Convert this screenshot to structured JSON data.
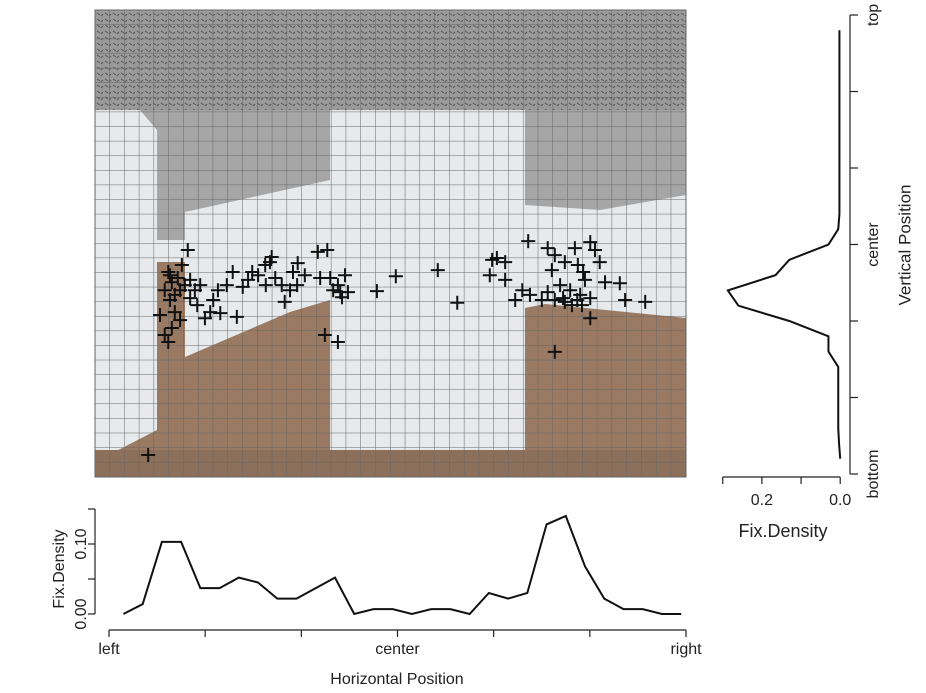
{
  "chart_data": [
    {
      "type": "scatter",
      "color": "#111111",
      "xlim": [
        0,
        100
      ],
      "ylim": [
        0,
        100
      ],
      "x": [
        9.0,
        12.4,
        11.8,
        11.0,
        13.5,
        13.0,
        14.4,
        12.7,
        16.1,
        17.3,
        18.6,
        19.5,
        21.2,
        24.0,
        20.0,
        20.8,
        22.3,
        23.3,
        25.0,
        25.9,
        26.6,
        27.6,
        28.8,
        29.6,
        29.9,
        28.9,
        30.5,
        31.6,
        32.1,
        33.0,
        33.5,
        34.2,
        34.3,
        35.5,
        38.1,
        37.7,
        39.3,
        39.8,
        40.3,
        41.1,
        41.8,
        42.3,
        42.8,
        41.5,
        38.9,
        41.1,
        47.7,
        50.9,
        58.0,
        61.3,
        12.4,
        13.0,
        11.8,
        14.0,
        15.2,
        15.7,
        14.7,
        13.5,
        12.7,
        14.4,
        16.1,
        16.9,
        17.8,
        73.3,
        76.6,
        77.8,
        77.3,
        78.7,
        79.5,
        81.2,
        81.7,
        82.6,
        82.9,
        83.8,
        84.6,
        85.4,
        86.3,
        83.8,
        82.4,
        83.8,
        81.6,
        80.4,
        79.2,
        77.8,
        76.6,
        75.6,
        73.6,
        72.3,
        71.1,
        69.4,
        67.2,
        66.8,
        68.0,
        69.4,
        77.8,
        88.8,
        89.7,
        93.1,
        80.7,
        79.5,
        82.1
      ],
      "y": [
        4.7,
        28.9,
        30.4,
        34.7,
        35.3,
        31.9,
        33.6,
        37.9,
        38.3,
        36.8,
        34.0,
        35.3,
        35.1,
        34.3,
        37.9,
        40.0,
        41.1,
        43.9,
        40.7,
        42.2,
        43.9,
        43.2,
        45.4,
        46.0,
        47.1,
        41.1,
        42.6,
        41.1,
        37.5,
        40.0,
        43.9,
        41.1,
        45.8,
        43.2,
        42.6,
        48.2,
        48.6,
        42.6,
        40.0,
        41.1,
        38.5,
        43.2,
        39.6,
        39.6,
        30.4,
        28.9,
        39.8,
        43.0,
        44.3,
        37.3,
        43.9,
        41.7,
        40.0,
        42.6,
        41.1,
        48.6,
        45.4,
        39.0,
        43.2,
        40.0,
        42.2,
        40.0,
        41.1,
        50.5,
        49.0,
        47.5,
        44.3,
        41.1,
        46.0,
        49.0,
        45.4,
        43.9,
        42.2,
        50.3,
        48.6,
        46.0,
        41.7,
        38.3,
        36.8,
        34.0,
        37.9,
        40.0,
        38.3,
        37.9,
        39.6,
        37.9,
        39.0,
        40.0,
        37.9,
        42.2,
        46.5,
        43.2,
        46.9,
        46.0,
        26.8,
        41.5,
        37.9,
        37.5,
        36.8,
        37.5,
        39.0
      ]
    },
    {
      "type": "line",
      "xlabel": "Horizontal Position",
      "ylabel": "Fix.Density",
      "color": "#111111",
      "xlim": [
        0,
        60
      ],
      "ylim": [
        -0.01,
        0.15
      ],
      "xticks": [
        {
          "value": 0,
          "label": "left"
        },
        {
          "value": 10,
          "label": null
        },
        {
          "value": 20,
          "label": null
        },
        {
          "value": 30,
          "label": "center"
        },
        {
          "value": 40,
          "label": null
        },
        {
          "value": 50,
          "label": null
        },
        {
          "value": 60,
          "label": "right"
        }
      ],
      "yticks": [
        {
          "value": 0,
          "label": "0.00"
        },
        {
          "value": 0.05,
          "label": null
        },
        {
          "value": 0.1,
          "label": "0.10"
        },
        {
          "value": 0.15,
          "label": null
        }
      ],
      "x": [
        1.5,
        3.5,
        5.5,
        7.5,
        9.5,
        11.5,
        13.5,
        15.5,
        17.5,
        19.5,
        21.5,
        23.5,
        25.5,
        27.5,
        29.5,
        31.5,
        33.5,
        35.5,
        37.5,
        39.5,
        41.5,
        43.5,
        45.5,
        47.5,
        49.5,
        51.5,
        53.5,
        55.5,
        57.5,
        59.5
      ],
      "values": [
        0.0,
        0.014,
        0.103,
        0.103,
        0.037,
        0.037,
        0.052,
        0.045,
        0.022,
        0.022,
        0.037,
        0.052,
        0.0,
        0.007,
        0.007,
        0.0,
        0.007,
        0.007,
        0.0,
        0.03,
        0.022,
        0.03,
        0.128,
        0.14,
        0.068,
        0.022,
        0.007,
        0.007,
        0.0,
        0.0
      ]
    },
    {
      "type": "line",
      "orientation": "vertical",
      "xlabel": "Fix.Density",
      "ylabel": "Vertical Position",
      "color": "#111111",
      "xlim": [
        0.33,
        -0.025
      ],
      "ylim": [
        0,
        60
      ],
      "xticks": [
        {
          "value": 0.3,
          "label": null
        },
        {
          "value": 0.2,
          "label": "0.2"
        },
        {
          "value": 0.1,
          "label": null
        },
        {
          "value": 0.0,
          "label": "0.0"
        }
      ],
      "yticks": [
        {
          "value": 0,
          "label": "bottom"
        },
        {
          "value": 10,
          "label": null
        },
        {
          "value": 20,
          "label": null
        },
        {
          "value": 30,
          "label": "center"
        },
        {
          "value": 40,
          "label": null
        },
        {
          "value": 50,
          "label": null
        },
        {
          "value": 60,
          "label": "top"
        }
      ],
      "positions": [
        2,
        4,
        6,
        8,
        10,
        12,
        14,
        16,
        18,
        20,
        22,
        24,
        26,
        28,
        30,
        32,
        34,
        36,
        38,
        40,
        42,
        44,
        46,
        48,
        50,
        52,
        54,
        56,
        58
      ],
      "values": [
        0.0,
        0.003,
        0.005,
        0.005,
        0.005,
        0.005,
        0.005,
        0.03,
        0.03,
        0.13,
        0.26,
        0.287,
        0.165,
        0.13,
        0.03,
        0.005,
        0.002,
        0.002,
        0.002,
        0.002,
        0.002,
        0.002,
        0.002,
        0.002,
        0.002,
        0.002,
        0.002,
        0.002,
        0.002
      ]
    }
  ]
}
